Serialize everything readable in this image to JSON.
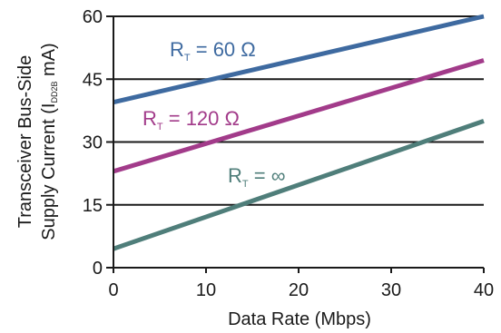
{
  "chart_data": {
    "type": "line",
    "title": "",
    "xlabel": "Data Rate (Mbps)",
    "ylabel_line1": "Transceiver Bus-Side",
    "ylabel_line2_prefix": "Supply Current (I",
    "ylabel_line2_sub": "DD2B",
    "ylabel_line2_suffix": " mA)",
    "xlim": [
      0,
      40
    ],
    "ylim": [
      0,
      60
    ],
    "xticks": [
      "0",
      "10",
      "20",
      "30",
      "40"
    ],
    "yticks": [
      "0",
      "15",
      "30",
      "45",
      "60"
    ],
    "grid": "horizontal",
    "series": [
      {
        "label_main": "R",
        "label_sub": "T",
        "label_rest": " = 60 Ω",
        "color": "#3e6aa0",
        "x": [
          0,
          40
        ],
        "y": [
          39.5,
          60
        ]
      },
      {
        "label_main": "R",
        "label_sub": "T",
        "label_rest": " = 120 Ω",
        "color": "#a23b8a",
        "x": [
          0,
          40
        ],
        "y": [
          23,
          49.5
        ]
      },
      {
        "label_main": "R",
        "label_sub": "T",
        "label_rest": " = ∞",
        "color": "#4f7e7a",
        "x": [
          0,
          40
        ],
        "y": [
          4.5,
          35
        ]
      }
    ]
  }
}
